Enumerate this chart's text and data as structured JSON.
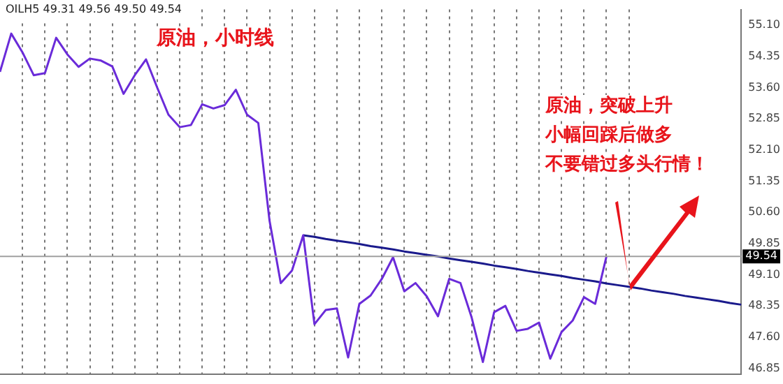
{
  "chart_data": {
    "type": "line",
    "title": "原油，小时线",
    "annotations": [
      "OILH5 49.31 49.56 49.50 49.54",
      "原油，突破上升",
      "小幅回踩后做多",
      "不要错过多头行情！"
    ],
    "categories": [
      null,
      null,
      null,
      null,
      null,
      null,
      null,
      null,
      null,
      null,
      null,
      null,
      null,
      null,
      null,
      null,
      null,
      null,
      null,
      null,
      null,
      null,
      null,
      null,
      null,
      null,
      null,
      null,
      null,
      null,
      null,
      null,
      null,
      null,
      null,
      null,
      null,
      null,
      null,
      null,
      null,
      null,
      null,
      null,
      null,
      null,
      null,
      null,
      null,
      null,
      null,
      null,
      null,
      null,
      null,
      null,
      null,
      null,
      null,
      null,
      null,
      null,
      null,
      null,
      null,
      null,
      null
    ],
    "ylim": [
      46.7,
      55.48
    ],
    "yticks": [
      {
        "value": 55.1,
        "label": "55.10"
      },
      {
        "value": 54.35,
        "label": "54.35"
      },
      {
        "value": 53.6,
        "label": "53.60"
      },
      {
        "value": 52.85,
        "label": "52.85"
      },
      {
        "value": 52.1,
        "label": "52.10"
      },
      {
        "value": 51.35,
        "label": "51.35"
      },
      {
        "value": 50.6,
        "label": "50.60"
      },
      {
        "value": 49.85,
        "label": "49.85"
      },
      {
        "value": 49.1,
        "label": "49.10"
      },
      {
        "value": 48.35,
        "label": "48.35"
      },
      {
        "value": 47.6,
        "label": "47.60"
      },
      {
        "value": 46.85,
        "label": "46.85"
      }
    ],
    "tick_labels": "y",
    "grid": "x",
    "legend": false,
    "marker": "none",
    "line_style": "solid",
    "ref_lines": [
      {
        "axis": "y",
        "value": 49.54,
        "label": "49.54",
        "color": "#a0a0a0"
      }
    ],
    "series": [
      {
        "color": "#6a2bd9",
        "values": [
          53.98,
          54.9,
          54.45,
          53.9,
          53.95,
          54.8,
          54.4,
          54.1,
          54.3,
          54.25,
          54.11,
          53.45,
          53.9,
          54.28,
          53.6,
          52.95,
          52.65,
          52.7,
          53.2,
          53.1,
          53.18,
          53.55,
          52.95,
          52.75,
          50.4,
          48.9,
          49.2,
          50.05,
          47.91,
          48.25,
          48.29,
          47.11,
          48.4,
          48.6,
          49.0,
          49.52,
          48.7,
          48.9,
          48.58,
          48.1,
          49.0,
          48.9,
          48.07,
          47.0,
          48.2,
          48.35,
          47.75,
          47.8,
          47.95,
          47.08,
          47.72,
          48.0,
          48.56,
          48.4,
          49.54,
          null,
          null,
          null,
          null,
          null,
          null,
          null,
          null,
          null,
          null,
          null,
          null
        ]
      },
      {
        "color": "#1a1a8c",
        "values": [
          null,
          null,
          null,
          null,
          null,
          null,
          null,
          null,
          null,
          null,
          null,
          null,
          null,
          null,
          null,
          null,
          null,
          null,
          null,
          null,
          null,
          null,
          null,
          null,
          null,
          null,
          null,
          50.05,
          50.01,
          49.96,
          49.92,
          49.88,
          49.84,
          49.79,
          49.75,
          49.71,
          49.66,
          49.62,
          49.58,
          49.54,
          49.49,
          49.45,
          49.41,
          49.37,
          49.32,
          49.28,
          49.24,
          49.19,
          49.15,
          49.11,
          49.07,
          49.02,
          48.98,
          48.94,
          48.89,
          48.85,
          48.81,
          48.77,
          48.72,
          48.68,
          48.64,
          48.59,
          48.55,
          48.51,
          48.47,
          48.42,
          48.38
        ]
      }
    ]
  }
}
